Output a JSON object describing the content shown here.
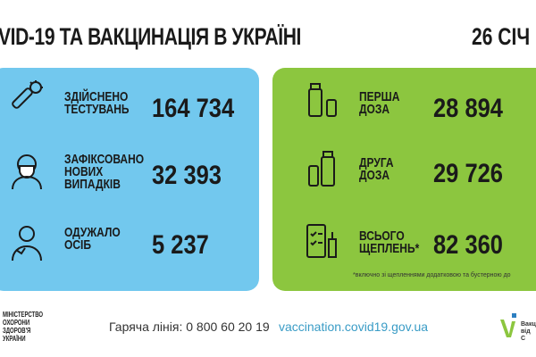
{
  "header": {
    "title": "VID-19 ТА ВАКЦИНАЦІЯ В УКРАЇНІ",
    "date": "26 СІЧ"
  },
  "covid_panel": {
    "color": "#72c8ee",
    "items": [
      {
        "icon": "test-tube-virus-icon",
        "label_lines": [
          "ЗДІЙСНЕНО",
          "ТЕСТУВАНЬ"
        ],
        "value": "164 734"
      },
      {
        "icon": "masked-person-icon",
        "label_lines": [
          "ЗАФІКСОВАНО",
          "НОВИХ",
          "ВИПАДКІВ"
        ],
        "value": "32 393"
      },
      {
        "icon": "recovered-person-icon",
        "label_lines": [
          "ОДУЖАЛО",
          "ОСІБ"
        ],
        "value": "5 237"
      }
    ]
  },
  "vaccine_panel": {
    "color": "#8cc63f",
    "items": [
      {
        "icon": "vaccine-vial-icon",
        "label_lines": [
          "ПЕРША",
          "ДОЗА"
        ],
        "value": "28 894"
      },
      {
        "icon": "vaccine-vials-icon",
        "label_lines": [
          "ДРУГА",
          "ДОЗА"
        ],
        "value": "29 726"
      },
      {
        "icon": "checklist-syringe-icon",
        "label_lines": [
          "ВСЬОГО",
          "ЩЕПЛЕНЬ*"
        ],
        "value": "82 360"
      }
    ],
    "footnote": "*включно зі щепленнями додатковою та бустерною до"
  },
  "footer": {
    "ministry_lines": [
      "МІНІСТЕРСТВО",
      "ОХОРОНИ",
      "ЗДОРОВ'Я",
      "УКРАЇНИ"
    ],
    "hotline": "Гаряча лінія: 0 800 60 20 19",
    "url": "vaccination.covid19.gov.ua",
    "logo_lines": [
      "Вакц",
      "від C"
    ]
  }
}
